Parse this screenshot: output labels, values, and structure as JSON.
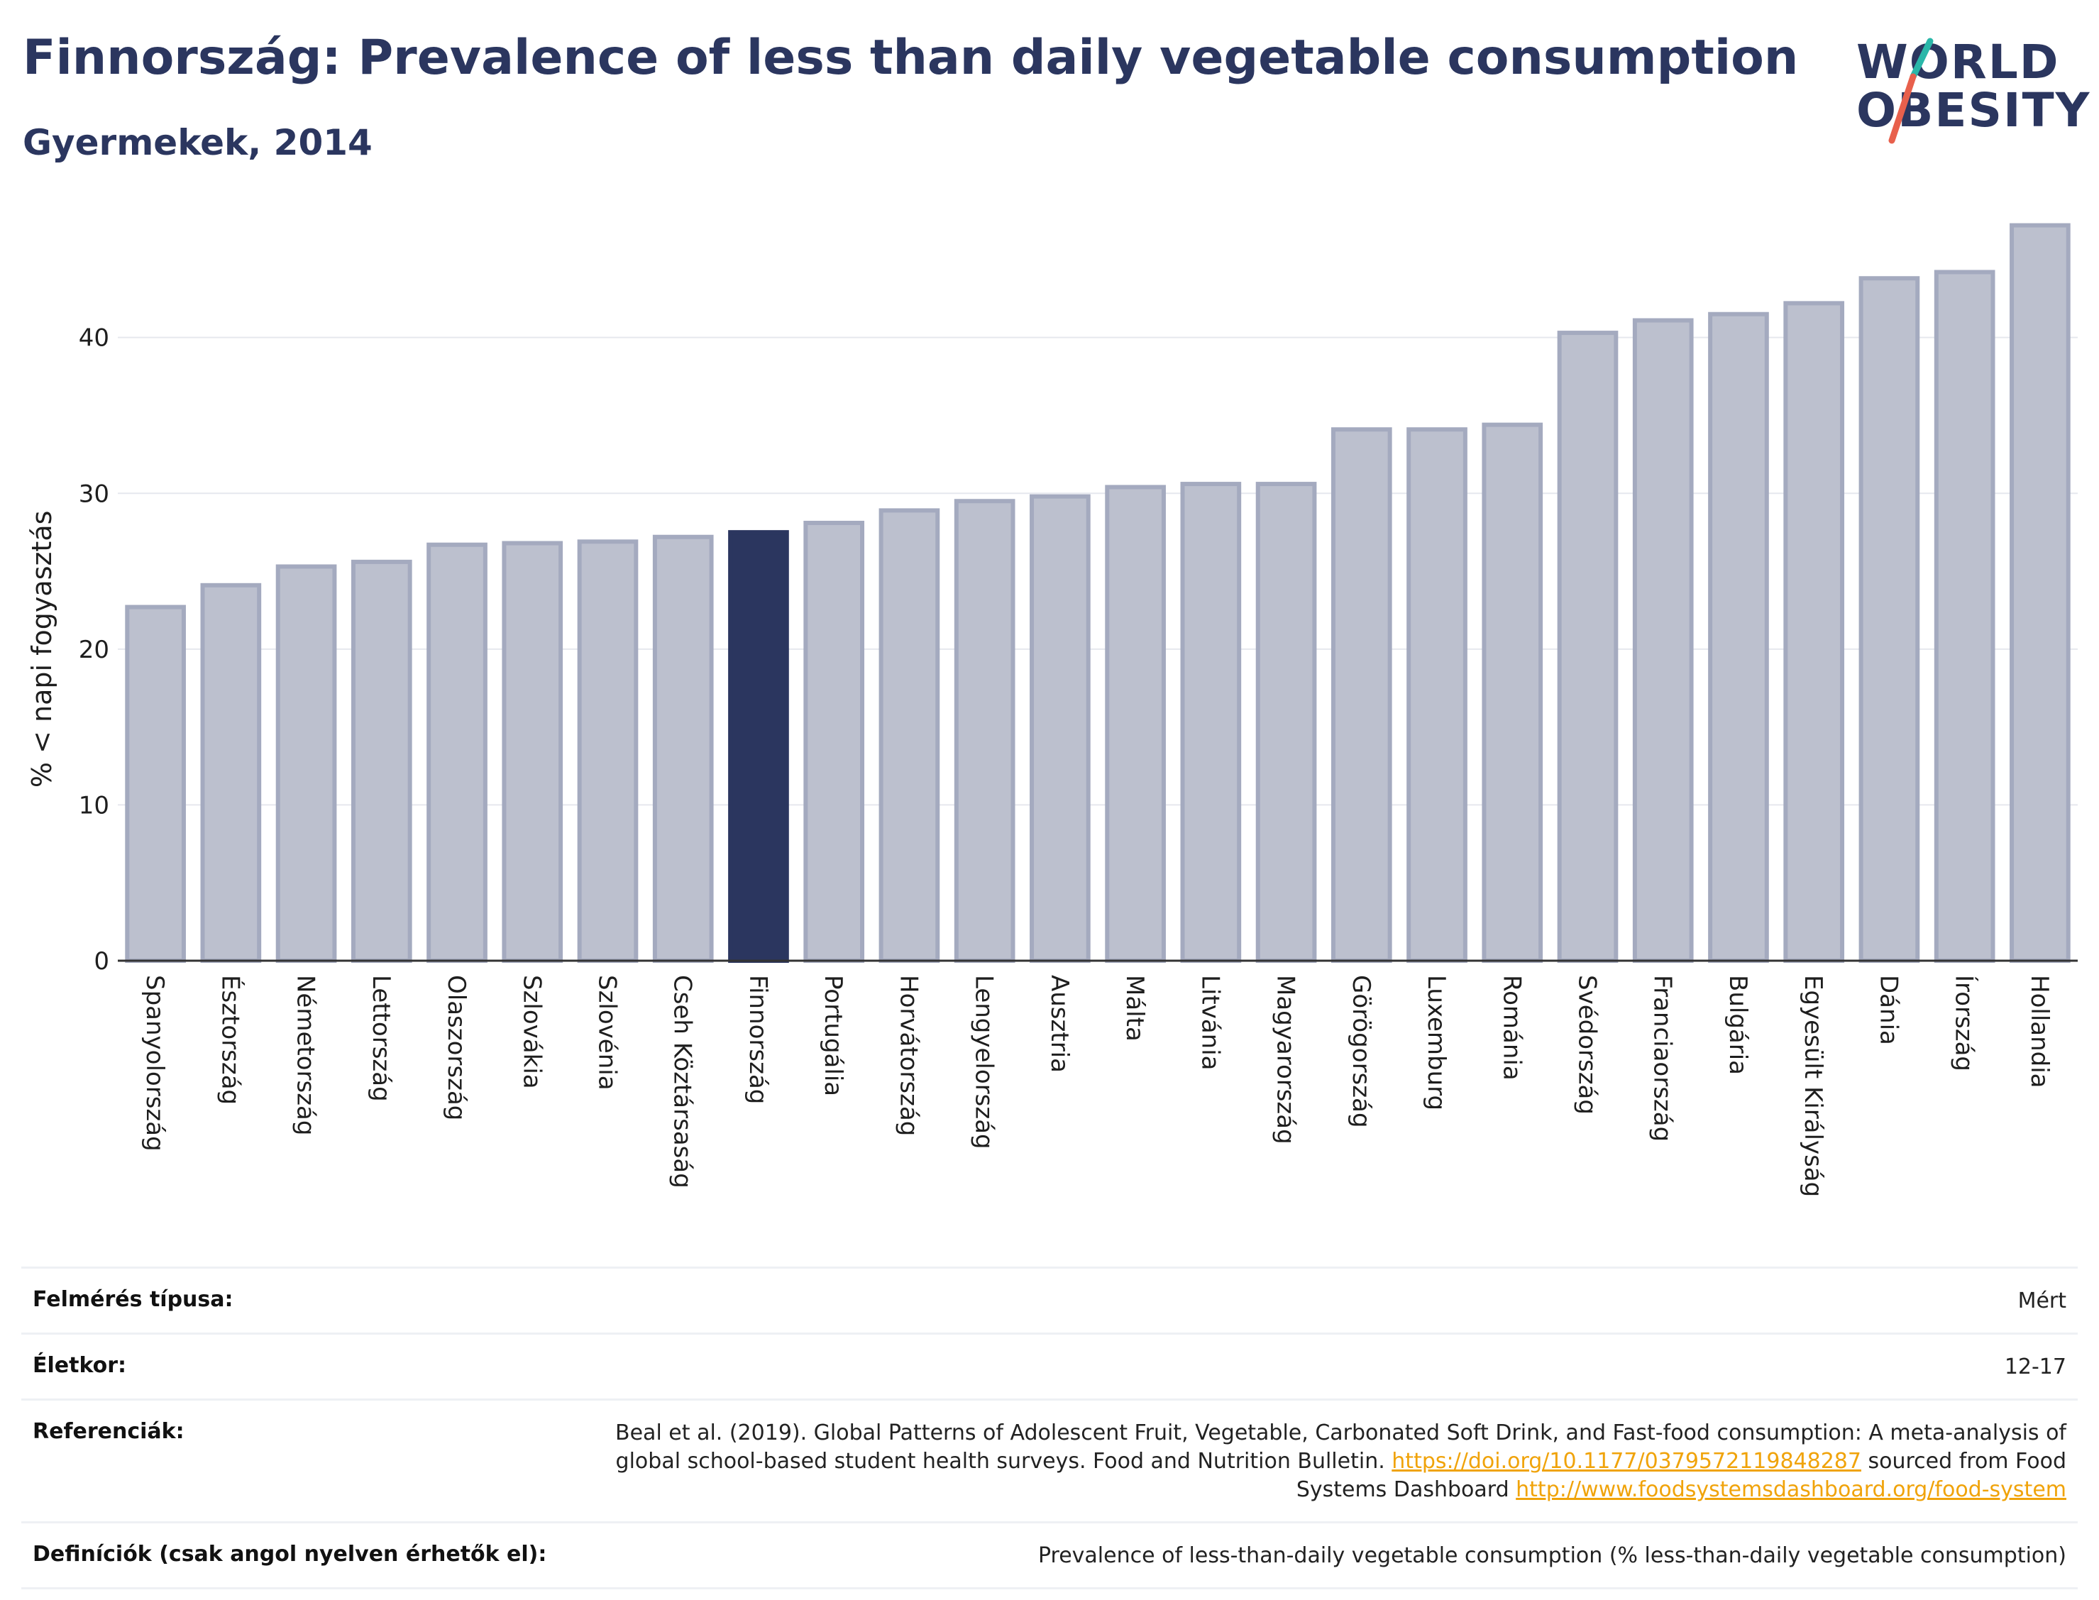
{
  "header": {
    "title": "Finnország: Prevalence of less than daily vegetable consumption",
    "subtitle": "Gyermekek, 2014"
  },
  "logo": {
    "line1": "WORLD",
    "line2": "OBESITY",
    "colors": {
      "text": "#2b365f",
      "slash_top": "#2ab7a9",
      "slash_bottom": "#e8604c"
    }
  },
  "chart_data": {
    "type": "bar",
    "title": "",
    "xlabel": "",
    "ylabel": "% < napi fogyasztás",
    "ylim": [
      0,
      48
    ],
    "yticks": [
      0,
      10,
      20,
      30,
      40
    ],
    "grid": true,
    "highlight": "Finnország",
    "colors": {
      "bar": "#bcc0ce",
      "bar_edge": "#a4aabf",
      "highlight": "#2b365f"
    },
    "categories": [
      "Spanyolország",
      "Észtország",
      "Németország",
      "Lettország",
      "Olaszország",
      "Szlovákia",
      "Szlovénia",
      "Cseh Köztársaság",
      "Finnország",
      "Portugália",
      "Horvátország",
      "Lengyelország",
      "Ausztria",
      "Málta",
      "Litvánia",
      "Magyarország",
      "Görögország",
      "Luxemburg",
      "Románia",
      "Svédország",
      "Franciaország",
      "Bulgária",
      "Egyesült Királyság",
      "Dánia",
      "Írország",
      "Hollandia"
    ],
    "values": [
      22.7,
      24.1,
      25.3,
      25.6,
      26.7,
      26.8,
      26.9,
      27.2,
      27.5,
      28.1,
      28.9,
      29.5,
      29.8,
      30.4,
      30.6,
      30.6,
      34.1,
      34.1,
      34.4,
      40.3,
      41.1,
      41.5,
      42.2,
      43.8,
      44.2,
      47.2
    ]
  },
  "info": {
    "survey_label": "Felmérés típusa:",
    "survey_value": "Mért",
    "age_label": "Életkor:",
    "age_value": "12-17",
    "ref_label": "Referenciák:",
    "ref_text_1": "Beal et al. (2019). Global Patterns of Adolescent Fruit, Vegetable, Carbonated Soft Drink, and Fast-food consumption: A meta-analysis of global school-based student health surveys. Food and Nutrition Bulletin. ",
    "ref_link_1": "https://doi.org/10.1177/0379572119848287",
    "ref_text_2": " sourced from Food Systems Dashboard ",
    "ref_link_2": "http://www.foodsystemsdashboard.org/food-system",
    "def_label": "Definíciók (csak angol nyelven érhetők el):",
    "def_value": "Prevalence of less-than-daily vegetable consumption (% less-than-daily vegetable consumption)"
  }
}
